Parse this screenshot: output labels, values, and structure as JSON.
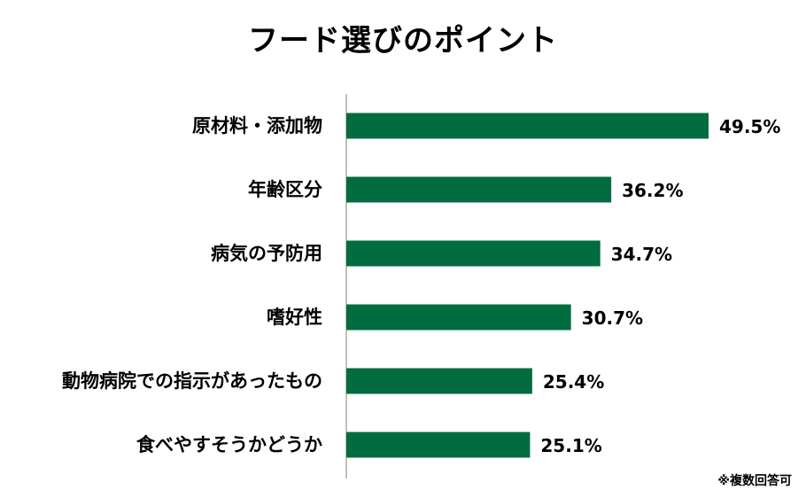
{
  "chart_data": {
    "type": "bar",
    "orientation": "horizontal",
    "title": "フード選びのポイント",
    "categories": [
      "原材料・添加物",
      "年齢区分",
      "病気の予防用",
      "嗜好性",
      "動物病院での指示があったもの",
      "食べやすそうかどうか"
    ],
    "values": [
      49.5,
      36.2,
      34.7,
      30.7,
      25.4,
      25.1
    ],
    "value_labels": [
      "49.5%",
      "36.2%",
      "34.7%",
      "30.7%",
      "25.4%",
      "25.1%"
    ],
    "unit": "%",
    "xlim": [
      0,
      50
    ],
    "grid": false,
    "bar_color": "#006c3f",
    "axis_color": "#808080"
  },
  "footnote": "※複数回答可"
}
